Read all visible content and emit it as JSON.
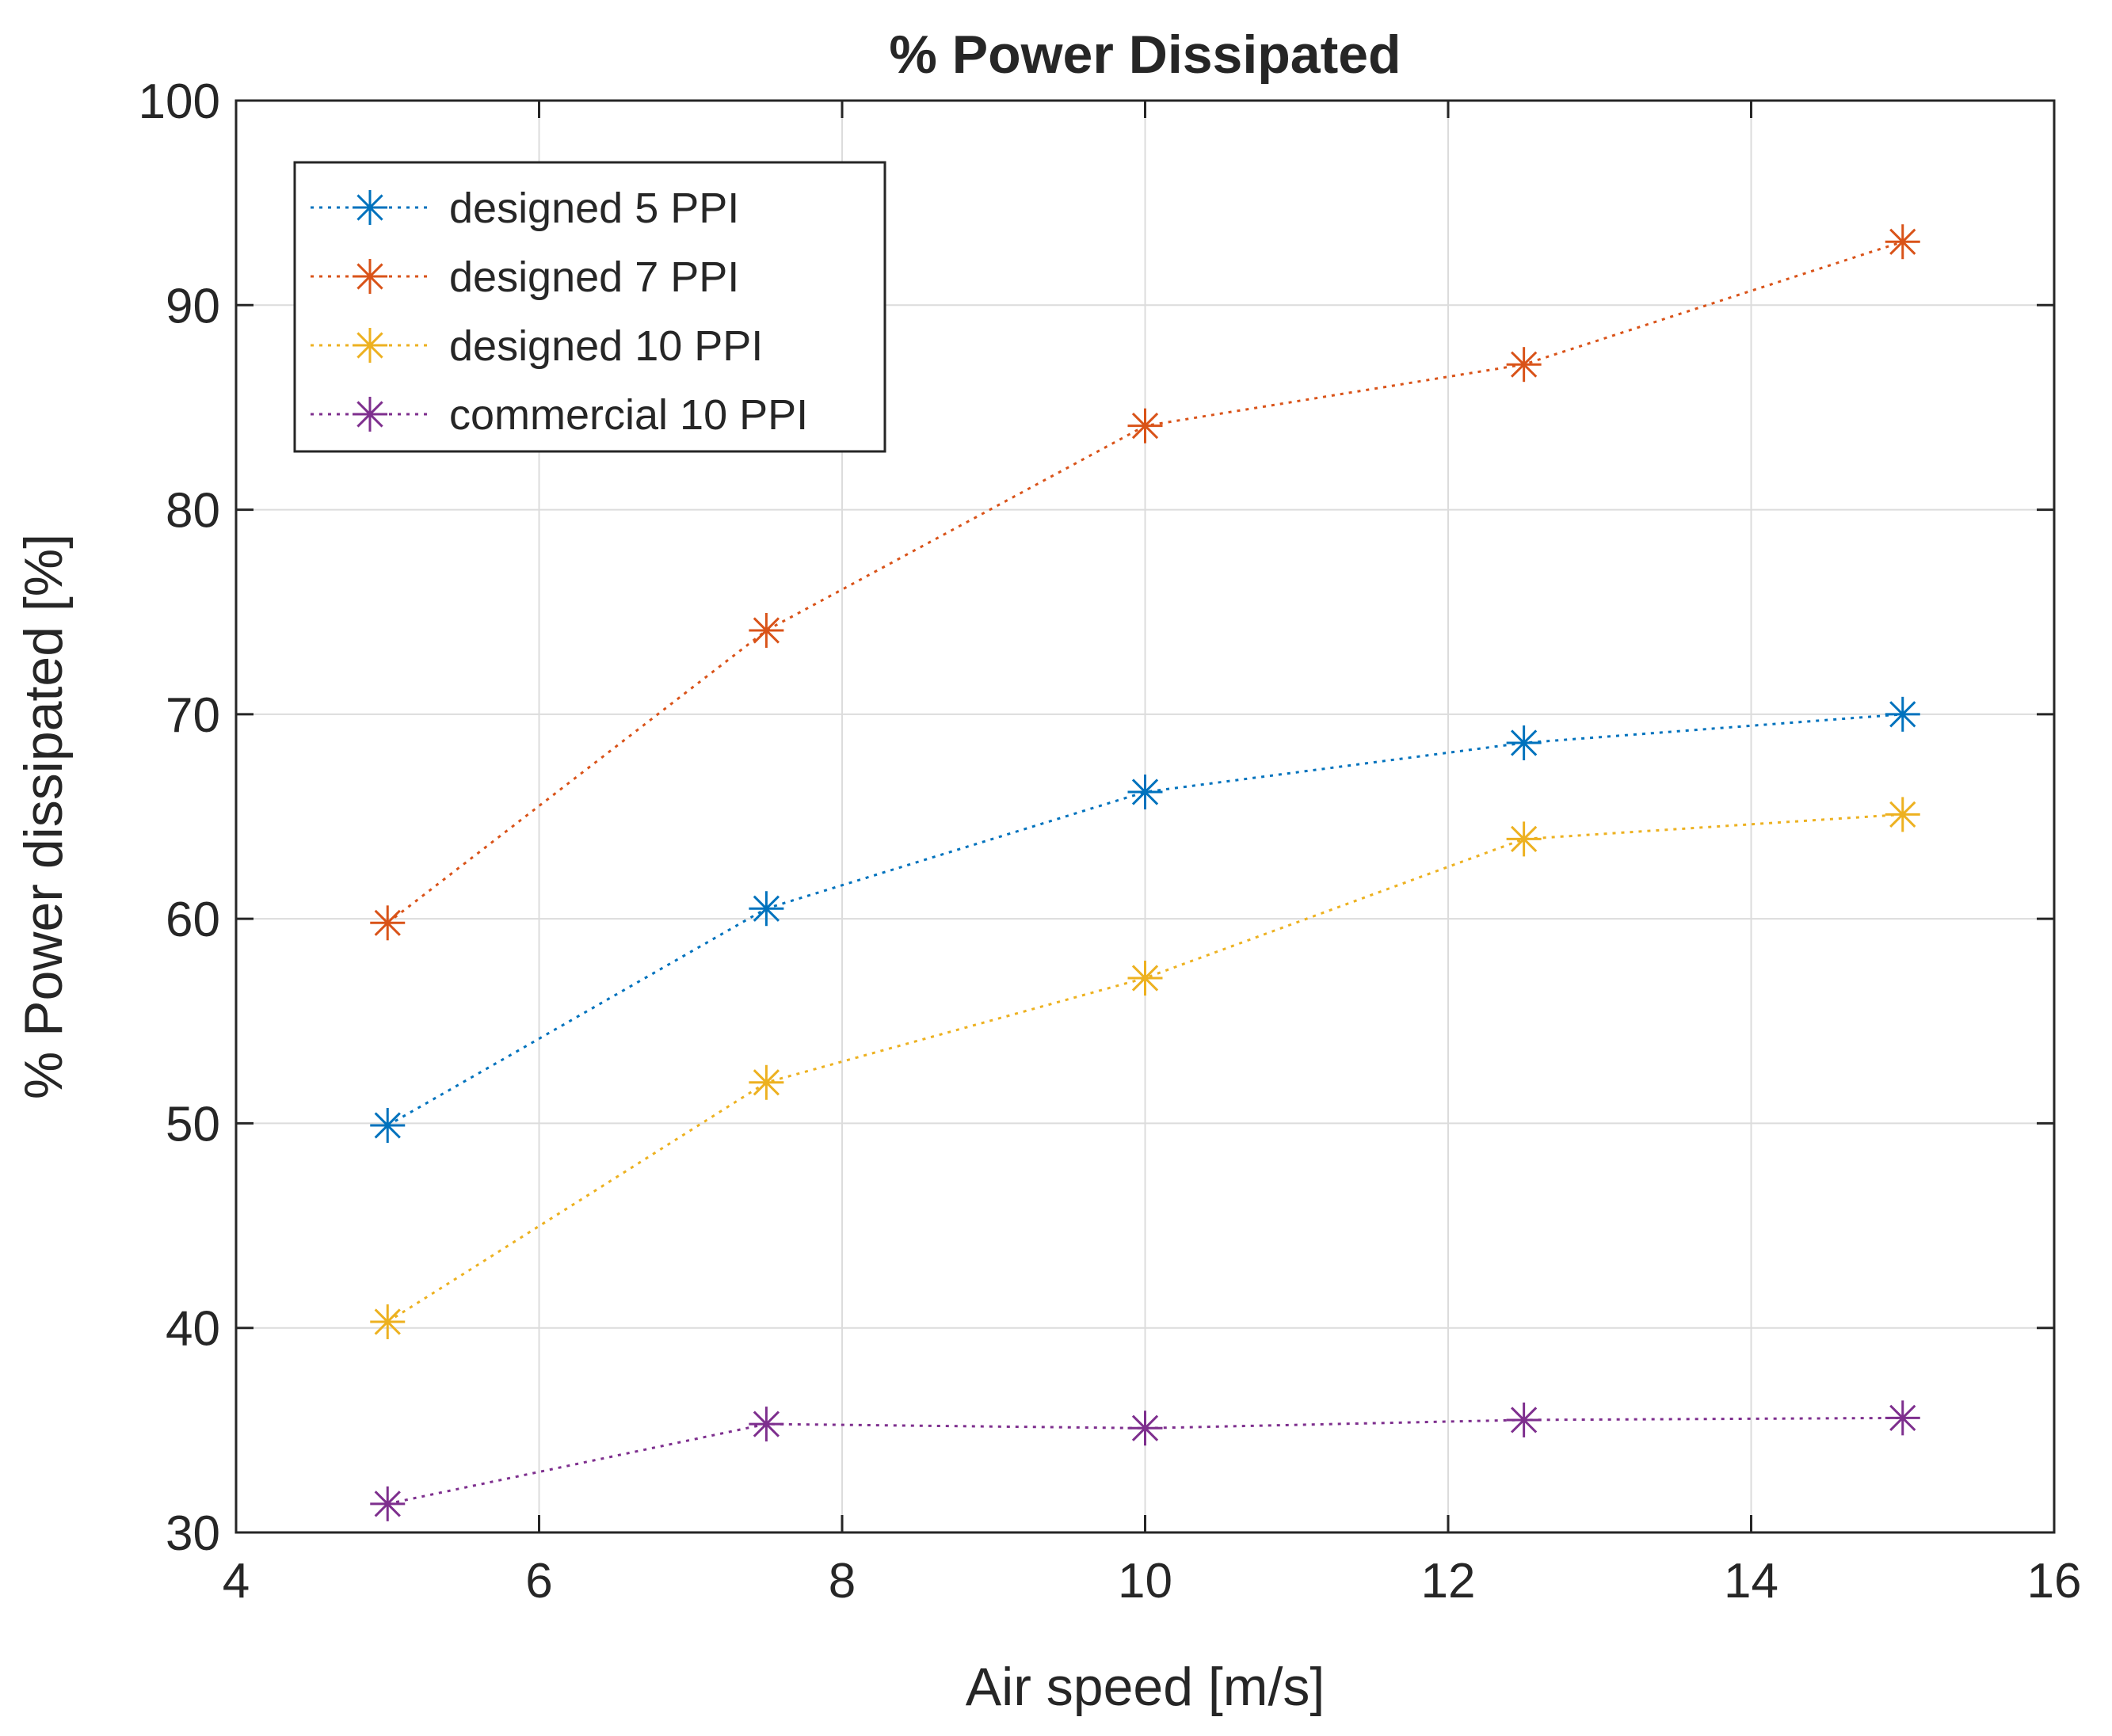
{
  "chart_data": {
    "type": "line",
    "title": "% Power Dissipated",
    "xlabel": "Air speed [m/s]",
    "ylabel": "% Power dissipated [%]",
    "xlim": [
      4,
      16
    ],
    "ylim": [
      30,
      100
    ],
    "xticks": [
      4,
      6,
      8,
      10,
      12,
      14,
      16
    ],
    "yticks": [
      30,
      40,
      50,
      60,
      70,
      80,
      90,
      100
    ],
    "grid": true,
    "legend_position": "top-left",
    "x": [
      5,
      7.5,
      10,
      12.5,
      15
    ],
    "series": [
      {
        "name": "designed 5 PPI",
        "color": "#0072BD",
        "values": [
          49.9,
          60.5,
          66.2,
          68.6,
          70.0
        ]
      },
      {
        "name": "designed 7 PPI",
        "color": "#D95319",
        "values": [
          59.8,
          74.1,
          84.1,
          87.1,
          93.1
        ]
      },
      {
        "name": "designed 10 PPI",
        "color": "#EDB120",
        "values": [
          40.3,
          52.0,
          57.1,
          63.9,
          65.1
        ]
      },
      {
        "name": "commercial 10 PPI",
        "color": "#7E2F8E",
        "values": [
          31.4,
          35.3,
          35.1,
          35.5,
          35.6
        ]
      }
    ]
  }
}
